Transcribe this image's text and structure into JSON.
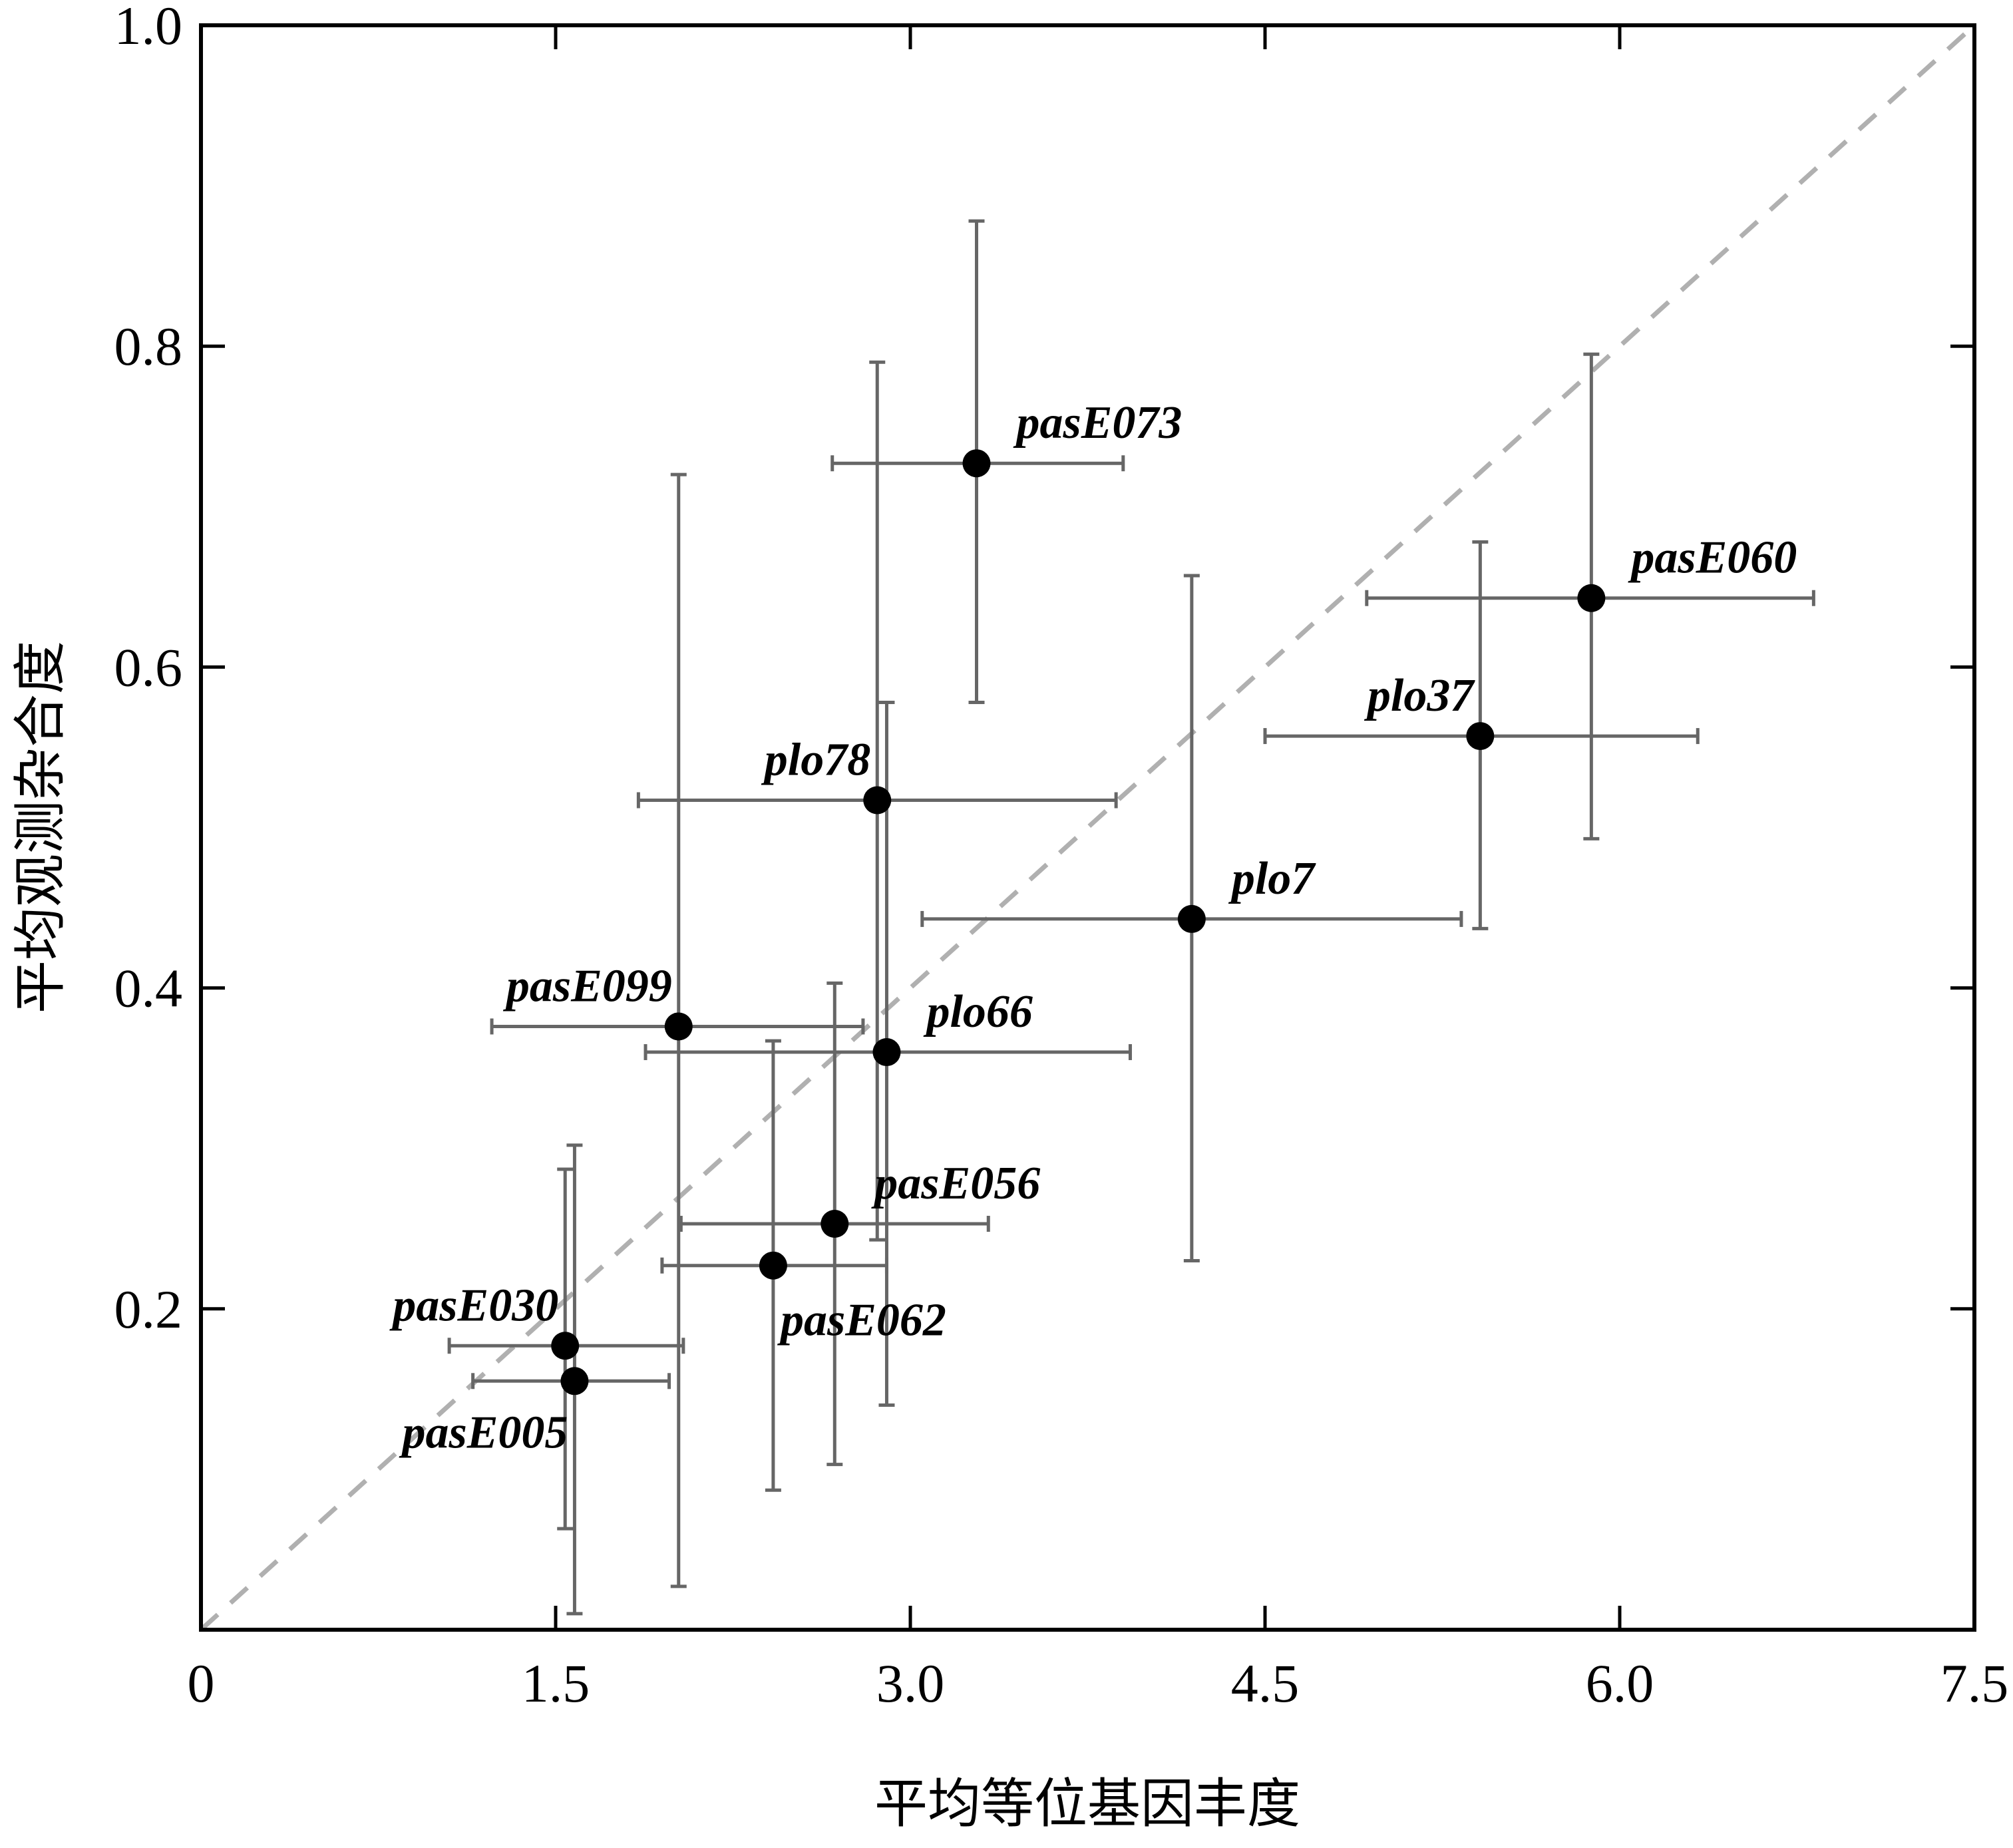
{
  "chart_data": {
    "type": "scatter",
    "title": "",
    "xlabel": "平均等位基因丰度",
    "ylabel": "平均观测杂合度",
    "xlim": [
      0,
      7.5
    ],
    "ylim": [
      0,
      1.0
    ],
    "xticks": [
      0,
      1.5,
      3.0,
      4.5,
      6.0,
      7.5
    ],
    "xtick_labels": [
      "0",
      "1.5",
      "3.0",
      "4.5",
      "6.0",
      "7.5"
    ],
    "yticks": [
      0.2,
      0.4,
      0.6,
      0.8,
      1.0
    ],
    "ytick_labels": [
      "0.2",
      "0.4",
      "0.6",
      "0.8",
      "1.0"
    ],
    "grid": false,
    "legend": false,
    "reference_line": {
      "style": "dashed",
      "color": "#b0b0b0",
      "from": [
        0,
        0
      ],
      "to": [
        7.5,
        1.0
      ]
    },
    "marker_color": "#000000",
    "errorbar_color": "#666666",
    "points": [
      {
        "label": "pasE073",
        "x": 3.28,
        "y": 0.727,
        "xerr": [
          2.67,
          3.9
        ],
        "yerr": [
          0.578,
          0.878
        ],
        "label_pos": "upper-right"
      },
      {
        "label": "pasE060",
        "x": 5.88,
        "y": 0.643,
        "xerr": [
          4.93,
          6.82
        ],
        "yerr": [
          0.493,
          0.795
        ],
        "label_pos": "upper-right"
      },
      {
        "label": "plo37",
        "x": 5.41,
        "y": 0.557,
        "xerr": [
          4.5,
          6.33
        ],
        "yerr": [
          0.437,
          0.678
        ],
        "label_pos": "upper-left"
      },
      {
        "label": "plo78",
        "x": 2.86,
        "y": 0.517,
        "xerr": [
          1.85,
          3.87
        ],
        "yerr": [
          0.243,
          0.79
        ],
        "label_pos": "upper-left"
      },
      {
        "label": "plo7",
        "x": 4.19,
        "y": 0.443,
        "xerr": [
          3.05,
          5.33
        ],
        "yerr": [
          0.23,
          0.657
        ],
        "label_pos": "upper-right"
      },
      {
        "label": "pasE099",
        "x": 2.02,
        "y": 0.376,
        "xerr": [
          1.23,
          2.8
        ],
        "yerr": [
          0.027,
          0.72
        ],
        "label_pos": "upper-left"
      },
      {
        "label": "plo66",
        "x": 2.9,
        "y": 0.36,
        "xerr": [
          1.88,
          3.93
        ],
        "yerr": [
          0.14,
          0.578
        ],
        "label_pos": "upper-right"
      },
      {
        "label": "pasE056",
        "x": 2.68,
        "y": 0.253,
        "xerr": [
          2.03,
          3.33
        ],
        "yerr": [
          0.103,
          0.403
        ],
        "label_pos": "upper-right"
      },
      {
        "label": "pasE062",
        "x": 2.42,
        "y": 0.227,
        "xerr": [
          1.95,
          2.9
        ],
        "yerr": [
          0.087,
          0.367
        ],
        "label_pos": "lower-right"
      },
      {
        "label": "pasE030",
        "x": 1.54,
        "y": 0.177,
        "xerr": [
          1.05,
          2.04
        ],
        "yerr": [
          0.063,
          0.287
        ],
        "label_pos": "upper-left"
      },
      {
        "label": "pasE005",
        "x": 1.58,
        "y": 0.155,
        "xerr": [
          1.15,
          1.98
        ],
        "yerr": [
          0.01,
          0.302
        ],
        "label_pos": "lower-left"
      }
    ]
  }
}
